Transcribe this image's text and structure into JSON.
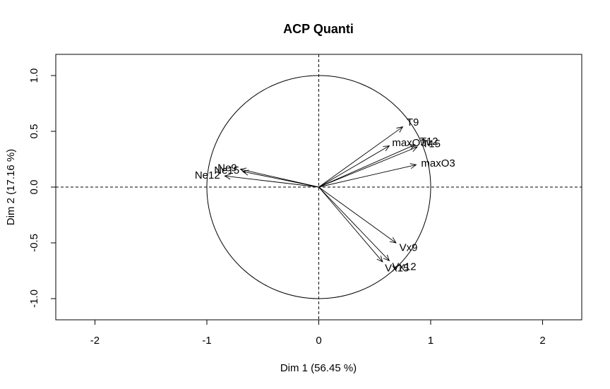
{
  "chart_data": {
    "type": "scatter",
    "title": "ACP Quanti",
    "xlabel": "Dim 1 (56.45 %)",
    "ylabel": "Dim 2 (17.16 %)",
    "xlim": [
      -2.35,
      2.35
    ],
    "ylim": [
      -1.19,
      1.19
    ],
    "xticks": [
      -2,
      -1,
      0,
      1,
      2
    ],
    "yticks": [
      -1.0,
      -0.5,
      0.0,
      0.5,
      1.0
    ],
    "xtick_labels": [
      "-2",
      "-1",
      "0",
      "1",
      "2"
    ],
    "ytick_labels": [
      "-1.0",
      "-0.5",
      "0.0",
      "0.5",
      "1.0"
    ],
    "unit_circle": true,
    "reference_lines": [
      0,
      0
    ],
    "grid": false,
    "variables": [
      {
        "name": "T9",
        "x": 0.75,
        "y": 0.54
      },
      {
        "name": "T12",
        "x": 0.86,
        "y": 0.38
      },
      {
        "name": "T15",
        "x": 0.88,
        "y": 0.36
      },
      {
        "name": "maxO3v",
        "x": 0.63,
        "y": 0.37
      },
      {
        "name": "maxO3",
        "x": 0.87,
        "y": 0.2
      },
      {
        "name": "Ne9",
        "x": -0.7,
        "y": 0.16
      },
      {
        "name": "Ne12",
        "x": -0.84,
        "y": 0.1
      },
      {
        "name": "Ne15",
        "x": -0.68,
        "y": 0.14
      },
      {
        "name": "Vx9",
        "x": 0.69,
        "y": -0.5
      },
      {
        "name": "Vx12",
        "x": 0.63,
        "y": -0.66
      },
      {
        "name": "Vx15",
        "x": 0.57,
        "y": -0.67
      }
    ]
  }
}
